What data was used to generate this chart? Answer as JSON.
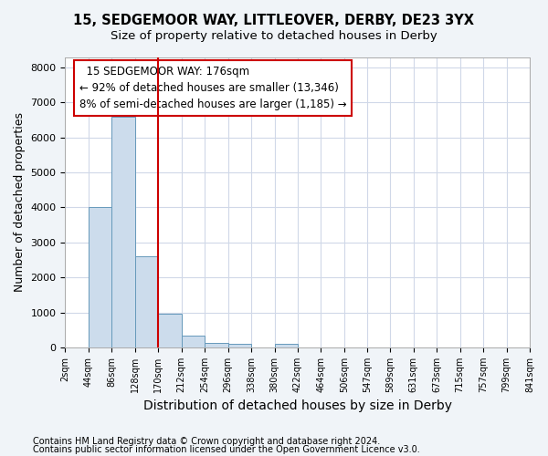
{
  "title1": "15, SEDGEMOOR WAY, LITTLEOVER, DERBY, DE23 3YX",
  "title2": "Size of property relative to detached houses in Derby",
  "xlabel": "Distribution of detached houses by size in Derby",
  "ylabel": "Number of detached properties",
  "bin_edges": [
    2,
    44,
    86,
    128,
    170,
    212,
    254,
    296,
    338,
    380,
    422,
    464,
    506,
    547,
    589,
    631,
    673,
    715,
    757,
    799,
    841
  ],
  "bar_heights": [
    0,
    4000,
    6600,
    2600,
    950,
    330,
    130,
    100,
    0,
    100,
    0,
    0,
    0,
    0,
    0,
    0,
    0,
    0,
    0,
    0
  ],
  "bar_color": "#ccdcec",
  "bar_edge_color": "#6699bb",
  "vline_x": 170,
  "vline_color": "#cc0000",
  "annotation_box_color": "#cc0000",
  "annotation_text_line1": "  15 SEDGEMOOR WAY: 176sqm  ",
  "annotation_text_line2": "← 92% of detached houses are smaller (13,346)",
  "annotation_text_line3": "8% of semi-detached houses are larger (1,185) →",
  "ylim": [
    0,
    8300
  ],
  "yticks": [
    0,
    1000,
    2000,
    3000,
    4000,
    5000,
    6000,
    7000,
    8000
  ],
  "footnote1": "Contains HM Land Registry data © Crown copyright and database right 2024.",
  "footnote2": "Contains public sector information licensed under the Open Government Licence v3.0.",
  "bg_color": "#f0f4f8",
  "plot_bg_color": "#ffffff",
  "grid_color": "#d0d8e8",
  "title1_fontsize": 10.5,
  "title2_fontsize": 9.5,
  "annotation_fontsize": 8.5,
  "xlabel_fontsize": 10,
  "ylabel_fontsize": 9,
  "footnote_fontsize": 7
}
